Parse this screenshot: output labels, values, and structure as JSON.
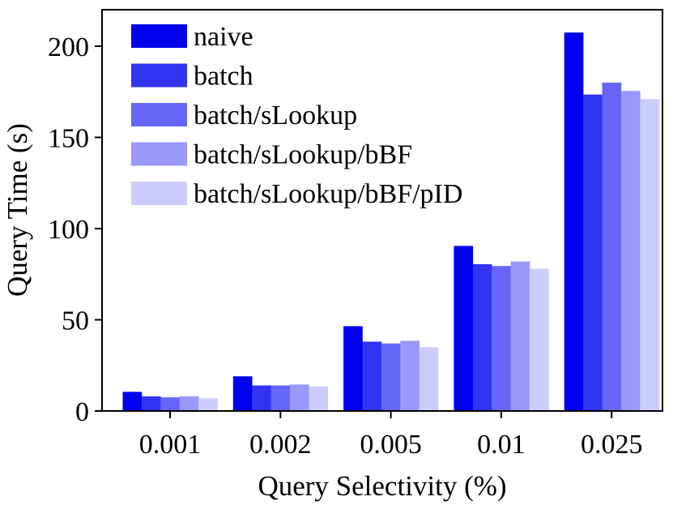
{
  "chart_data": {
    "type": "bar",
    "xlabel": "Query Selectivity (%)",
    "ylabel": "Query Time (s)",
    "ylim": [
      0,
      220
    ],
    "yticks": [
      0,
      50,
      100,
      150,
      200
    ],
    "grid": false,
    "legend_position": "top-left",
    "categories": [
      "0.001",
      "0.002",
      "0.005",
      "0.01",
      "0.025"
    ],
    "series": [
      {
        "name": "naive",
        "color": "#0000ee",
        "values": [
          10.5,
          19,
          46.5,
          90.5,
          207.5
        ]
      },
      {
        "name": "batch",
        "color": "#3333f2",
        "values": [
          8,
          14,
          38,
          80.5,
          173.5
        ]
      },
      {
        "name": "batch/sLookup",
        "color": "#6666f6",
        "values": [
          7.5,
          14,
          37,
          79.5,
          180
        ]
      },
      {
        "name": "batch/sLookup/bBF",
        "color": "#9999fa",
        "values": [
          8,
          14.5,
          38.5,
          82,
          175.5
        ]
      },
      {
        "name": "batch/sLookup/bBF/pID",
        "color": "#ccccfc",
        "values": [
          7,
          13.5,
          35,
          78,
          171
        ]
      }
    ]
  }
}
